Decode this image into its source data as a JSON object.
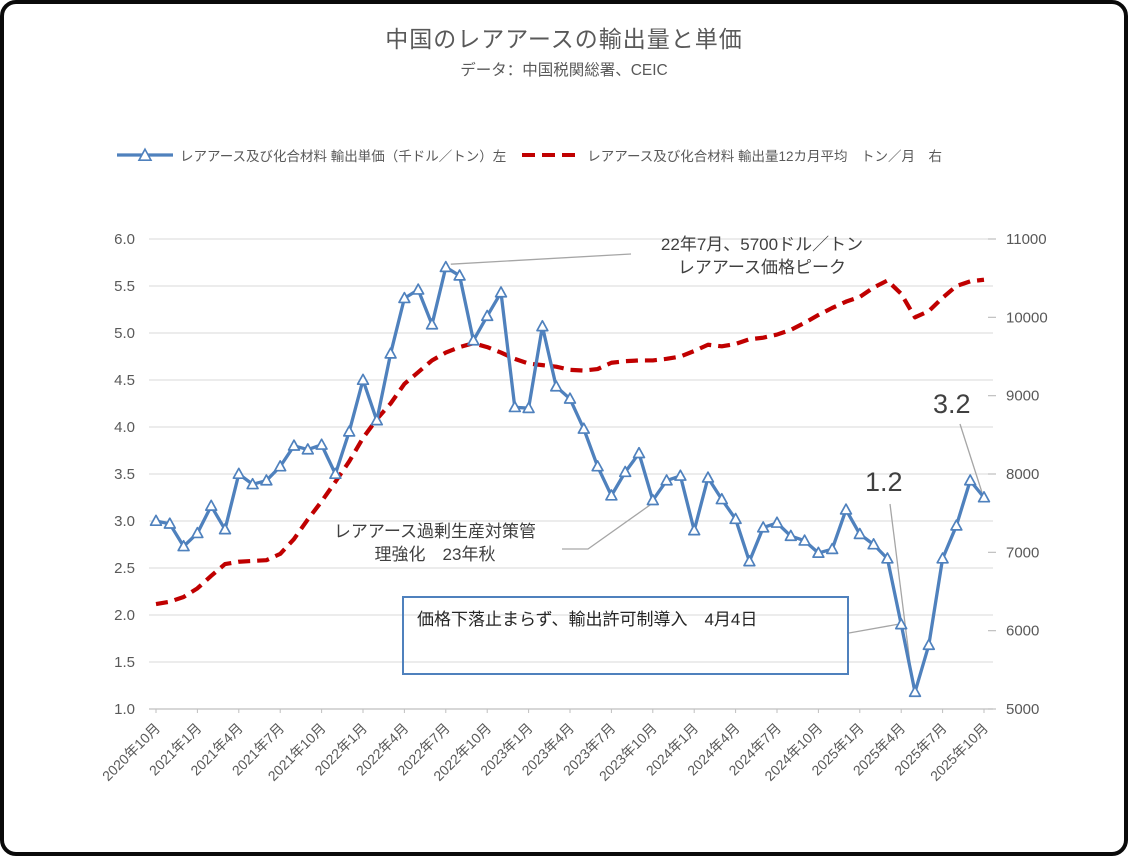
{
  "chart_data": {
    "type": "line",
    "title": "中国のレアアースの輸出量と単価",
    "subtitle": "データ：中国税関総署、CEIC",
    "grid": true,
    "legend_position": "top",
    "x_labels": [
      "2020年10月",
      "2020年11月",
      "2020年12月",
      "2021年1月",
      "2021年2月",
      "2021年3月",
      "2021年4月",
      "2021年5月",
      "2021年6月",
      "2021年7月",
      "2021年8月",
      "2021年9月",
      "2021年10月",
      "2021年11月",
      "2021年12月",
      "2022年1月",
      "2022年2月",
      "2022年3月",
      "2022年4月",
      "2022年5月",
      "2022年6月",
      "2022年7月",
      "2022年8月",
      "2022年9月",
      "2022年10月",
      "2022年11月",
      "2022年12月",
      "2023年1月",
      "2023年2月",
      "2023年3月",
      "2023年4月",
      "2023年5月",
      "2023年6月",
      "2023年7月",
      "2023年8月",
      "2023年9月",
      "2023年10月",
      "2023年11月",
      "2023年12月",
      "2024年1月",
      "2024年2月",
      "2024年3月",
      "2024年4月",
      "2024年5月",
      "2024年6月",
      "2024年7月",
      "2024年8月",
      "2024年9月",
      "2024年10月",
      "2024年11月",
      "2024年12月",
      "2025年1月",
      "2025年2月",
      "2025年3月",
      "2025年4月",
      "2025年5月",
      "2025年6月",
      "2025年7月",
      "2025年8月",
      "2025年9月",
      "2025年10月"
    ],
    "x_tick_step": 3,
    "left_axis": {
      "min": 1.0,
      "max": 6.0,
      "ticks": [
        "6.0",
        "5.5",
        "5.0",
        "4.5",
        "4.0",
        "3.5",
        "3.0",
        "2.5",
        "2.0",
        "1.5",
        "1.0"
      ]
    },
    "right_axis": {
      "min": 5000,
      "max": 11000,
      "ticks": [
        "11000",
        "10000",
        "9000",
        "8000",
        "7000",
        "6000",
        "5000"
      ]
    },
    "series": [
      {
        "name": "レアアース及び化合材料 輸出単価（千ドル／トン）左",
        "axis": "left",
        "color": "#4f81bd",
        "style": "solid",
        "marker": "triangle-open",
        "values": [
          3.0,
          2.97,
          2.73,
          2.87,
          3.16,
          2.91,
          3.5,
          3.39,
          3.43,
          3.58,
          3.8,
          3.76,
          3.81,
          3.5,
          3.95,
          4.5,
          4.07,
          4.78,
          5.37,
          5.46,
          5.09,
          5.7,
          5.61,
          4.92,
          5.18,
          5.43,
          4.21,
          4.2,
          5.07,
          4.43,
          4.3,
          3.98,
          3.58,
          3.27,
          3.52,
          3.72,
          3.22,
          3.43,
          3.48,
          2.9,
          3.46,
          3.23,
          3.02,
          2.57,
          2.93,
          2.98,
          2.84,
          2.79,
          2.66,
          2.7,
          3.12,
          2.86,
          2.75,
          2.6,
          1.9,
          1.18,
          1.68,
          2.6,
          2.95,
          3.43,
          3.25
        ]
      },
      {
        "name": "レアアース及び化合材料 輸出量12カ月平均　トン／月　右",
        "axis": "right",
        "color": "#c00000",
        "style": "dashed",
        "marker": "none",
        "values": [
          6340,
          6370,
          6430,
          6540,
          6700,
          6850,
          6880,
          6890,
          6900,
          6980,
          7170,
          7420,
          7650,
          7900,
          8160,
          8460,
          8700,
          8900,
          9150,
          9300,
          9450,
          9550,
          9620,
          9670,
          9620,
          9550,
          9470,
          9410,
          9390,
          9370,
          9330,
          9320,
          9340,
          9420,
          9440,
          9450,
          9450,
          9470,
          9500,
          9570,
          9650,
          9630,
          9660,
          9720,
          9740,
          9780,
          9840,
          9930,
          10030,
          10120,
          10200,
          10260,
          10380,
          10470,
          10300,
          10000,
          10080,
          10250,
          10400,
          10460,
          10480
        ]
      }
    ],
    "annotations": [
      {
        "id": "peak",
        "line1": "22年7月、5700ドル／トン",
        "line2": "レアアース価格ピーク",
        "anchor_month_index": 21,
        "anchor_value": 5.7
      },
      {
        "id": "policy",
        "line1": "レアアース過剰生産対策管",
        "line2": "理強化　23年秋",
        "anchor_month_index": 36,
        "anchor_value": 3.22
      },
      {
        "id": "box",
        "text": "価格下落止まらず、輸出許可制導入　4月4日",
        "anchor_month_index": 54,
        "anchor_value": 1.9
      },
      {
        "id": "low",
        "text": "1.2",
        "anchor_month_index": 55,
        "anchor_value": 1.18
      },
      {
        "id": "last",
        "text": "3.2",
        "anchor_month_index": 60,
        "anchor_value": 3.25
      }
    ],
    "colors": {
      "grid": "#d9d9d9",
      "axis": "#bfbfbf",
      "text": "#595959",
      "callout": "#a6a6a6",
      "annotation_box_border": "#4f81bd"
    }
  }
}
